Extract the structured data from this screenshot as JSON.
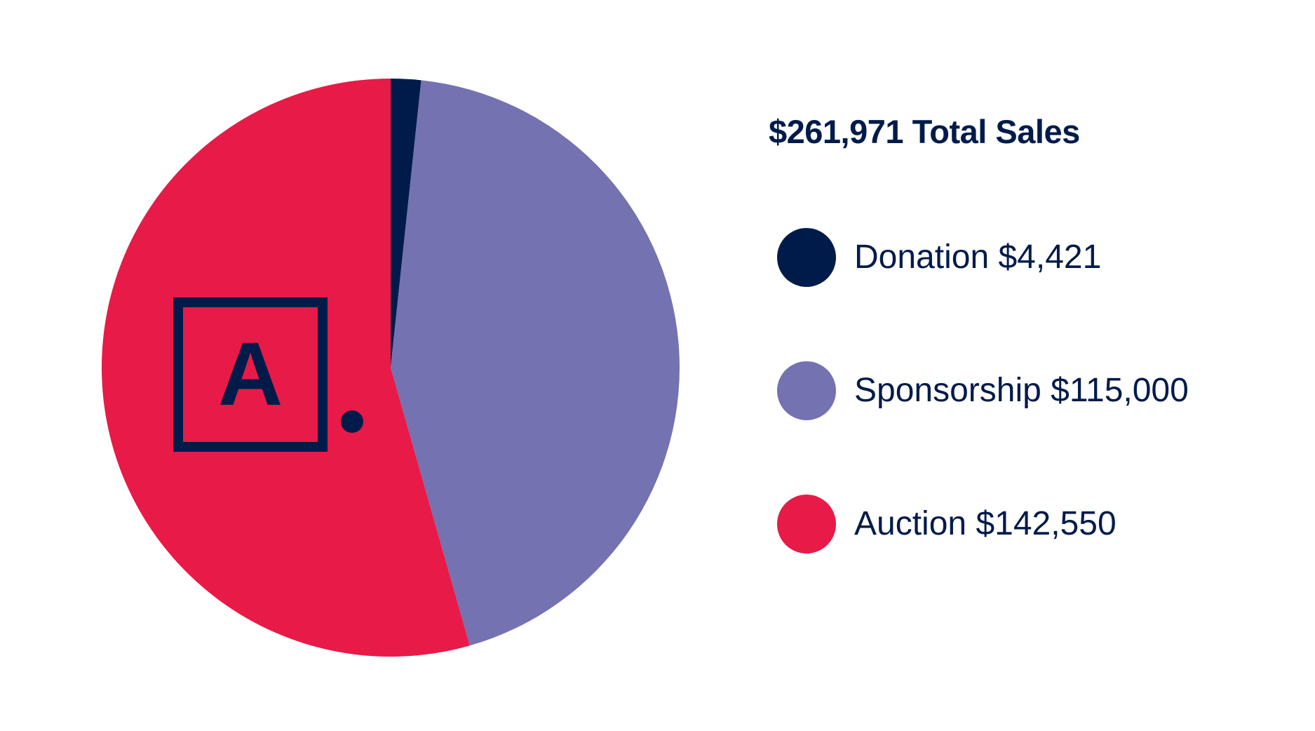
{
  "chart_data": {
    "type": "pie",
    "title": "$261,971 Total Sales",
    "total": 261971,
    "slices": [
      {
        "name": "Donation",
        "value": 4421,
        "color": "#001b4a",
        "legend_label": "Donation $4,421"
      },
      {
        "name": "Sponsorship",
        "value": 115000,
        "color": "#7472b0",
        "legend_label": "Sponsorship $115,000"
      },
      {
        "name": "Auction",
        "value": 142550,
        "color": "#e81a47",
        "legend_label": "Auction $142,550"
      }
    ],
    "start_angle": "12 o'clock",
    "direction": "clockwise",
    "legend_position": "right"
  },
  "logo": {
    "letter": "A",
    "color": "#001b4a",
    "icon": "a-dot-logo-icon"
  }
}
